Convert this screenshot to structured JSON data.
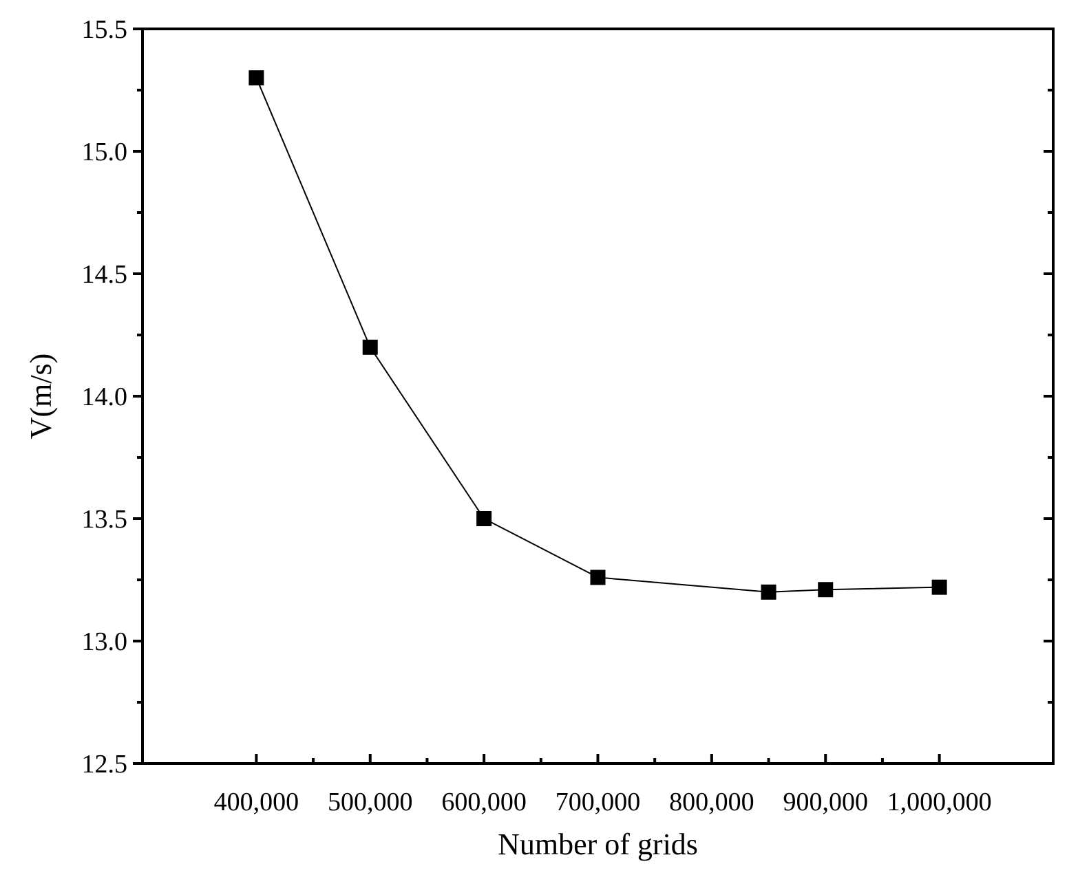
{
  "chart_data": {
    "type": "line",
    "title": "",
    "xlabel": "Number of grids",
    "ylabel": "V(m/s)",
    "x": [
      400000,
      500000,
      600000,
      700000,
      850000,
      900000,
      1000000
    ],
    "series": [
      {
        "values": [
          15.3,
          14.2,
          13.5,
          13.26,
          13.2,
          13.21,
          13.22
        ]
      }
    ],
    "xlim": [
      300000,
      1100000
    ],
    "ylim": [
      12.5,
      15.5
    ],
    "xticks": [
      400000,
      500000,
      600000,
      700000,
      800000,
      900000,
      1000000
    ],
    "xtick_labels": [
      "400,000",
      "500,000",
      "600,000",
      "700,000",
      "800,000",
      "900,000",
      "1,000,000"
    ],
    "yticks": [
      12.5,
      13.0,
      13.5,
      14.0,
      14.5,
      15.0,
      15.5
    ],
    "ytick_labels": [
      "12.5",
      "13.0",
      "13.5",
      "14.0",
      "14.5",
      "15.0",
      "15.5"
    ],
    "grid": false,
    "legend": "none",
    "marker": "filled-square",
    "color": "#000000"
  }
}
